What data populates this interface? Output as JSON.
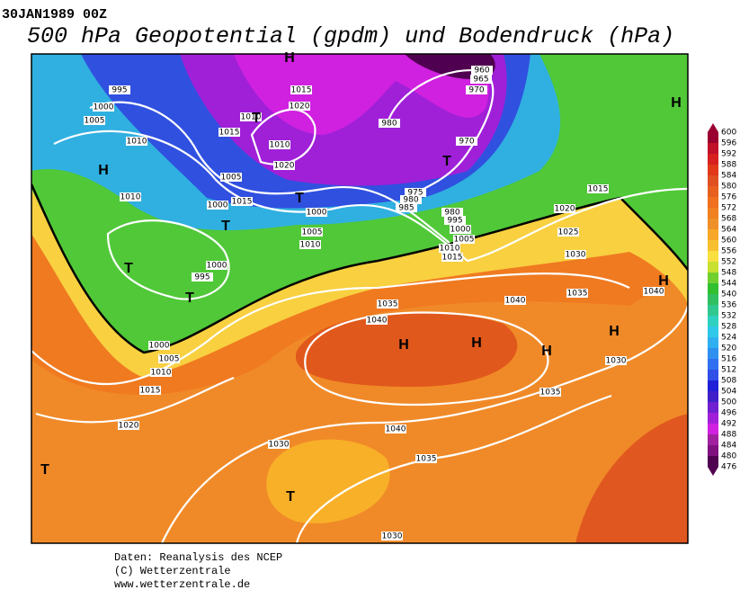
{
  "header": {
    "date": "30JAN1989 00Z",
    "title": "500 hPa Geopotential (gpdm) und Bodendruck (hPa)"
  },
  "colorbar": {
    "levels": [
      600,
      596,
      592,
      588,
      584,
      580,
      576,
      572,
      568,
      564,
      560,
      556,
      552,
      548,
      544,
      540,
      536,
      532,
      528,
      524,
      520,
      516,
      512,
      508,
      504,
      500,
      496,
      492,
      488,
      484,
      480,
      476
    ],
    "colors": [
      "#9a0030",
      "#c0102a",
      "#d82020",
      "#e03818",
      "#e05020",
      "#e86020",
      "#f07020",
      "#f08020",
      "#f09028",
      "#f8a828",
      "#f8c030",
      "#f8e040",
      "#c8e030",
      "#70d030",
      "#30c030",
      "#30c060",
      "#30c890",
      "#30d0c0",
      "#30c8e8",
      "#30b0f0",
      "#3090f0",
      "#3070f0",
      "#3050e8",
      "#2020d8",
      "#4020c8",
      "#7020d0",
      "#a020d8",
      "#d020e0",
      "#a020a0",
      "#801080",
      "#500050"
    ]
  },
  "map": {
    "isobar_labels": [
      "995",
      "1000",
      "1005",
      "1010",
      "1015",
      "1020",
      "1015",
      "1010",
      "1020",
      "1005",
      "1015",
      "1000",
      "1000",
      "1005",
      "1010",
      "1010",
      "1000",
      "995",
      "960",
      "965",
      "970",
      "980",
      "970",
      "975",
      "980",
      "985",
      "980",
      "995",
      "1000",
      "1005",
      "1010",
      "1015",
      "1015",
      "1020",
      "1025",
      "1030",
      "1035",
      "1040",
      "1040",
      "1035",
      "1040",
      "1000",
      "1005",
      "1010",
      "1015",
      "1020",
      "1030",
      "1040",
      "1035",
      "1035",
      "1030",
      "1030",
      "1010"
    ],
    "pressure_centers": [
      "H",
      "T",
      "H",
      "T",
      "T",
      "T",
      "T",
      "T",
      "H",
      "H",
      "H",
      "H",
      "H",
      "H",
      "T",
      "T"
    ]
  },
  "footer": {
    "lines": [
      "Daten: Reanalysis des NCEP",
      "(C) Wetterzentrale",
      "www.wetterzentrale.de"
    ]
  }
}
